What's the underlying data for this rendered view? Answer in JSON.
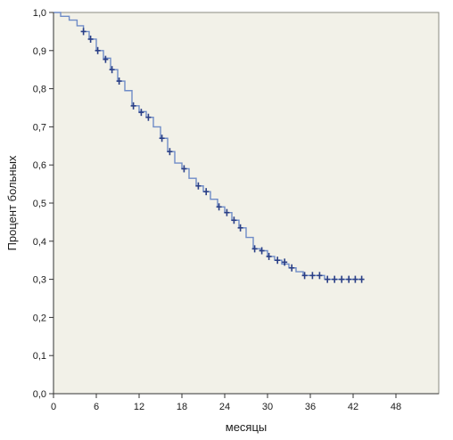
{
  "chart_data": {
    "type": "line",
    "title": "",
    "xlabel": "месяцы",
    "ylabel": "Процент больных",
    "xlim": [
      0,
      54
    ],
    "ylim": [
      0,
      1.0
    ],
    "x_ticks": [
      0,
      6,
      12,
      18,
      24,
      30,
      36,
      42,
      48
    ],
    "y_ticks": [
      0.0,
      0.1,
      0.2,
      0.3,
      0.4,
      0.5,
      0.6,
      0.7,
      0.8,
      0.9,
      1.0
    ],
    "y_tick_labels": [
      "0,0",
      "0,1",
      "0,2",
      "0,3",
      "0,4",
      "0,5",
      "0,6",
      "0,7",
      "0,8",
      "0,9",
      "1,0"
    ],
    "x_tick_labels": [
      "0",
      "6",
      "12",
      "18",
      "24",
      "30",
      "36",
      "42",
      "48"
    ],
    "grid": false,
    "legend": "none",
    "colors": {
      "line": "#6f8cc7",
      "censor": "#2a3f86",
      "plot_bg": "#f2f1e8",
      "axis": "#333333"
    },
    "series": [
      {
        "step": [
          [
            0,
            1.0
          ],
          [
            1,
            0.99
          ],
          [
            2.2,
            0.98
          ],
          [
            3.3,
            0.965
          ],
          [
            4.2,
            0.95
          ],
          [
            5,
            0.93
          ],
          [
            6,
            0.9
          ],
          [
            7,
            0.88
          ],
          [
            8,
            0.85
          ],
          [
            9,
            0.82
          ],
          [
            10,
            0.795
          ],
          [
            11,
            0.755
          ],
          [
            12,
            0.74
          ],
          [
            13,
            0.725
          ],
          [
            14,
            0.7
          ],
          [
            15,
            0.67
          ],
          [
            16,
            0.635
          ],
          [
            17,
            0.605
          ],
          [
            18,
            0.59
          ],
          [
            19,
            0.565
          ],
          [
            20,
            0.545
          ],
          [
            21,
            0.53
          ],
          [
            22,
            0.51
          ],
          [
            23,
            0.49
          ],
          [
            24,
            0.475
          ],
          [
            25,
            0.455
          ],
          [
            26,
            0.435
          ],
          [
            27,
            0.41
          ],
          [
            28,
            0.38
          ],
          [
            29,
            0.375
          ],
          [
            30,
            0.36
          ],
          [
            31,
            0.35
          ],
          [
            32,
            0.34
          ],
          [
            33,
            0.33
          ],
          [
            34,
            0.32
          ],
          [
            35,
            0.31
          ],
          [
            38,
            0.3
          ],
          [
            43,
            0.3
          ]
        ],
        "censored": [
          [
            4.2,
            0.95
          ],
          [
            5.2,
            0.93
          ],
          [
            6.2,
            0.9
          ],
          [
            7.3,
            0.877
          ],
          [
            8.2,
            0.85
          ],
          [
            9.2,
            0.82
          ],
          [
            11.2,
            0.755
          ],
          [
            12.3,
            0.738
          ],
          [
            13.3,
            0.725
          ],
          [
            15.2,
            0.67
          ],
          [
            16.3,
            0.635
          ],
          [
            18.3,
            0.59
          ],
          [
            20.3,
            0.545
          ],
          [
            21.4,
            0.53
          ],
          [
            23.2,
            0.49
          ],
          [
            24.3,
            0.475
          ],
          [
            25.3,
            0.455
          ],
          [
            26.2,
            0.435
          ],
          [
            28.2,
            0.38
          ],
          [
            29.2,
            0.375
          ],
          [
            30.2,
            0.36
          ],
          [
            31.4,
            0.35
          ],
          [
            32.4,
            0.345
          ],
          [
            33.4,
            0.33
          ],
          [
            35.2,
            0.31
          ],
          [
            36.3,
            0.31
          ],
          [
            37.3,
            0.31
          ],
          [
            38.4,
            0.3
          ],
          [
            39.4,
            0.3
          ],
          [
            40.4,
            0.3
          ],
          [
            41.4,
            0.3
          ],
          [
            42.3,
            0.3
          ],
          [
            43.2,
            0.3
          ]
        ]
      }
    ]
  }
}
